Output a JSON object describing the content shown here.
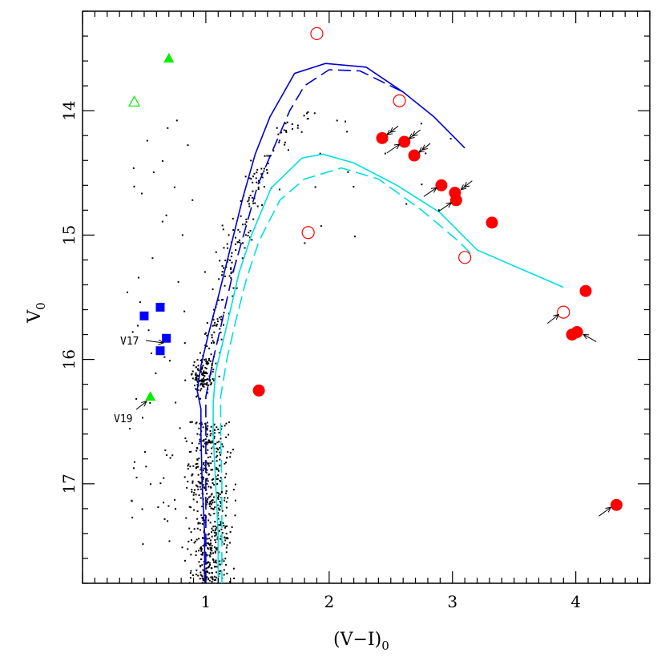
{
  "chart_data": {
    "type": "scatter",
    "title": "",
    "xlabel": "(V−I)",
    "xlabel_sub": "0",
    "ylabel": "V",
    "ylabel_sub": "0",
    "xlim": [
      0,
      4.6
    ],
    "ylim": [
      17.8,
      13.2
    ],
    "y_inverted": true,
    "xticks": [
      1,
      2,
      3,
      4
    ],
    "yticks": [
      14,
      15,
      16,
      17
    ],
    "grid": false,
    "legend": "none",
    "colors": {
      "field": "#000000",
      "rgb_giant": "#ff0000",
      "blue_sq": "#0000ff",
      "green_tri": "#00ee00",
      "iso_dark": "#0000d0",
      "iso_light": "#00e0e0"
    },
    "series": [
      {
        "marker": "filled-circle",
        "color": "#ff0000",
        "points": [
          [
            2.43,
            14.22
          ],
          [
            2.61,
            14.25
          ],
          [
            2.69,
            14.36
          ],
          [
            2.91,
            14.6
          ],
          [
            3.02,
            14.66
          ],
          [
            3.03,
            14.72
          ],
          [
            3.32,
            14.9
          ],
          [
            4.08,
            15.45
          ],
          [
            3.97,
            15.8
          ],
          [
            4.01,
            15.78
          ],
          [
            1.43,
            16.25
          ],
          [
            4.33,
            17.17
          ]
        ]
      },
      {
        "marker": "open-circle",
        "color": "#ff0000",
        "points": [
          [
            1.9,
            13.38
          ],
          [
            2.57,
            13.92
          ],
          [
            1.83,
            14.98
          ],
          [
            3.1,
            15.18
          ],
          [
            3.9,
            15.62
          ]
        ]
      },
      {
        "marker": "filled-square",
        "color": "#0000ff",
        "points": [
          [
            0.5,
            15.65
          ],
          [
            0.63,
            15.58
          ],
          [
            0.68,
            15.83
          ],
          [
            0.63,
            15.93
          ]
        ]
      },
      {
        "marker": "filled-triangle",
        "color": "#00ee00",
        "points": [
          [
            0.7,
            13.58
          ],
          [
            0.55,
            16.3
          ]
        ]
      },
      {
        "marker": "open-triangle",
        "color": "#00ee00",
        "points": [
          [
            0.42,
            13.93
          ]
        ]
      }
    ],
    "isochrones": [
      {
        "color": "#0000d0",
        "style": "solid",
        "points": [
          [
            0.99,
            17.8
          ],
          [
            0.99,
            17.4
          ],
          [
            0.97,
            17.0
          ],
          [
            0.96,
            16.6
          ],
          [
            0.96,
            16.4
          ],
          [
            0.93,
            16.25
          ],
          [
            0.96,
            16.05
          ],
          [
            1.02,
            15.8
          ],
          [
            1.1,
            15.5
          ],
          [
            1.2,
            15.1
          ],
          [
            1.3,
            14.7
          ],
          [
            1.4,
            14.35
          ],
          [
            1.52,
            14.05
          ],
          [
            1.72,
            13.7
          ],
          [
            1.97,
            13.62
          ],
          [
            2.3,
            13.65
          ],
          [
            2.6,
            13.85
          ],
          [
            2.85,
            14.05
          ],
          [
            3.1,
            14.3
          ]
        ]
      },
      {
        "color": "#0000d0",
        "style": "dashed",
        "points": [
          [
            1.0,
            17.8
          ],
          [
            1.0,
            17.4
          ],
          [
            1.0,
            17.0
          ],
          [
            1.0,
            16.6
          ],
          [
            1.0,
            16.3
          ],
          [
            1.06,
            16.0
          ],
          [
            1.13,
            15.7
          ],
          [
            1.22,
            15.3
          ],
          [
            1.32,
            14.95
          ],
          [
            1.42,
            14.6
          ],
          [
            1.55,
            14.3
          ],
          [
            1.68,
            14.0
          ],
          [
            1.8,
            13.8
          ],
          [
            2.0,
            13.67
          ],
          [
            2.25,
            13.68
          ],
          [
            2.6,
            13.85
          ]
        ]
      },
      {
        "color": "#00e0e0",
        "style": "solid",
        "points": [
          [
            1.1,
            17.8
          ],
          [
            1.1,
            17.4
          ],
          [
            1.08,
            17.0
          ],
          [
            1.06,
            16.6
          ],
          [
            1.06,
            16.35
          ],
          [
            1.08,
            16.1
          ],
          [
            1.14,
            15.85
          ],
          [
            1.2,
            15.6
          ],
          [
            1.27,
            15.3
          ],
          [
            1.37,
            15.0
          ],
          [
            1.53,
            14.62
          ],
          [
            1.78,
            14.38
          ],
          [
            1.95,
            14.35
          ],
          [
            2.2,
            14.42
          ],
          [
            2.55,
            14.6
          ],
          [
            2.9,
            14.82
          ],
          [
            3.2,
            15.12
          ],
          [
            3.9,
            15.42
          ]
        ]
      },
      {
        "color": "#00e0e0",
        "style": "dashed",
        "points": [
          [
            1.13,
            17.8
          ],
          [
            1.13,
            17.4
          ],
          [
            1.13,
            17.0
          ],
          [
            1.12,
            16.6
          ],
          [
            1.12,
            16.3
          ],
          [
            1.17,
            16.0
          ],
          [
            1.24,
            15.7
          ],
          [
            1.33,
            15.35
          ],
          [
            1.43,
            15.05
          ],
          [
            1.6,
            14.72
          ],
          [
            1.8,
            14.55
          ],
          [
            2.1,
            14.46
          ],
          [
            2.4,
            14.55
          ],
          [
            2.75,
            14.8
          ],
          [
            3.05,
            15.05
          ],
          [
            3.15,
            15.15
          ]
        ]
      }
    ],
    "annotations": [
      {
        "text": "V17",
        "x": 0.3,
        "y": 15.83
      },
      {
        "text": "V19",
        "x": 0.25,
        "y": 16.48
      }
    ]
  }
}
